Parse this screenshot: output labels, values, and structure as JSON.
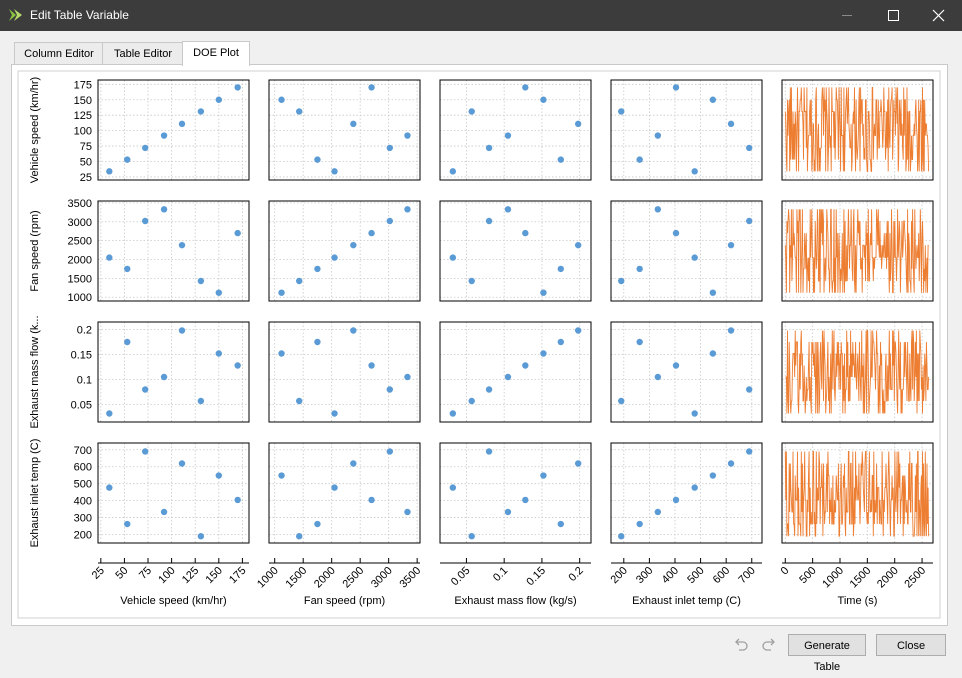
{
  "window": {
    "title": "Edit Table Variable",
    "icon": "app-logo-icon"
  },
  "tabs": [
    {
      "label": "Column Editor"
    },
    {
      "label": "Table Editor"
    },
    {
      "label": "DOE Plot",
      "active": true
    }
  ],
  "footer": {
    "generate_label": "Generate Table",
    "close_label": "Close",
    "undo_icon": "undo-icon",
    "redo_icon": "redo-icon"
  },
  "chart_data": {
    "type": "scatter",
    "layout": "scatter-matrix",
    "grid": true,
    "point_color": "#5b9bd5",
    "line_color": "#ed7d31",
    "variables": [
      {
        "name": "Vehicle speed (km/hr)",
        "ylabel": "Vehicle speed (km/hr)",
        "xlabel": "Vehicle speed (km/hr)",
        "values": [
          34,
          53,
          72,
          92,
          111,
          131,
          150,
          170
        ],
        "ylim": [
          20,
          182
        ],
        "yticks": [
          25,
          50,
          75,
          100,
          125,
          150,
          175
        ],
        "ytick_labels": [
          "25",
          "50",
          "75",
          "100",
          "125",
          "150",
          "175"
        ],
        "xlim": [
          22,
          182
        ],
        "xticks": [
          25,
          50,
          75,
          100,
          125,
          150,
          175
        ],
        "xtick_labels": [
          "25",
          "50",
          "75",
          "100",
          "125",
          "150",
          "175"
        ]
      },
      {
        "name": "Fan speed (rpm)",
        "ylabel": "Fan speed (rpm)",
        "xlabel": "Fan speed (rpm)",
        "values": [
          2050,
          1750,
          3020,
          3330,
          2380,
          1430,
          1120,
          2700
        ],
        "ylim": [
          900,
          3550
        ],
        "yticks": [
          1000,
          1500,
          2000,
          2500,
          3000,
          3500
        ],
        "ytick_labels": [
          "1000",
          "1500",
          "2000",
          "2500",
          "3000",
          "3500"
        ],
        "xlim": [
          900,
          3550
        ],
        "xticks": [
          1000,
          1500,
          2000,
          2500,
          3000,
          3500
        ],
        "xtick_labels": [
          "1000",
          "1500",
          "2000",
          "2500",
          "3000",
          "3500"
        ]
      },
      {
        "name": "Exhaust mass flow (kg/s)",
        "ylabel": "Exhaust mass flow (k...",
        "xlabel": "Exhaust mass flow (kg/s)",
        "values": [
          0.032,
          0.175,
          0.08,
          0.105,
          0.198,
          0.057,
          0.152,
          0.128
        ],
        "ylim": [
          0.015,
          0.215
        ],
        "yticks": [
          0.05,
          0.1,
          0.15,
          0.2
        ],
        "ytick_labels": [
          "0.05",
          "0.1",
          "0.15",
          "0.2"
        ],
        "xlim": [
          0.015,
          0.215
        ],
        "xticks": [
          0.05,
          0.1,
          0.15,
          0.2
        ],
        "xtick_labels": [
          "0.05",
          "0.1",
          "0.15",
          "0.2"
        ]
      },
      {
        "name": "Exhaust inlet temp (C)",
        "ylabel": "Exhaust inlet temp (C)",
        "xlabel": "Exhaust inlet temp (C)",
        "values": [
          477,
          262,
          690,
          333,
          619,
          190,
          548,
          404
        ],
        "ylim": [
          150,
          740
        ],
        "yticks": [
          200,
          300,
          400,
          500,
          600,
          700
        ],
        "ytick_labels": [
          "200",
          "300",
          "400",
          "500",
          "600",
          "700"
        ],
        "xlim": [
          150,
          740
        ],
        "xticks": [
          200,
          300,
          400,
          500,
          600,
          700
        ],
        "xtick_labels": [
          "200",
          "300",
          "400",
          "500",
          "600",
          "700"
        ]
      }
    ],
    "time_column": {
      "xlabel": "Time (s)",
      "xlim": [
        -60,
        2700
      ],
      "xticks": [
        0,
        500,
        1000,
        1500,
        2000,
        2500
      ],
      "xtick_labels": [
        "0",
        "500",
        "1000",
        "1500",
        "2000",
        "2500"
      ]
    }
  }
}
